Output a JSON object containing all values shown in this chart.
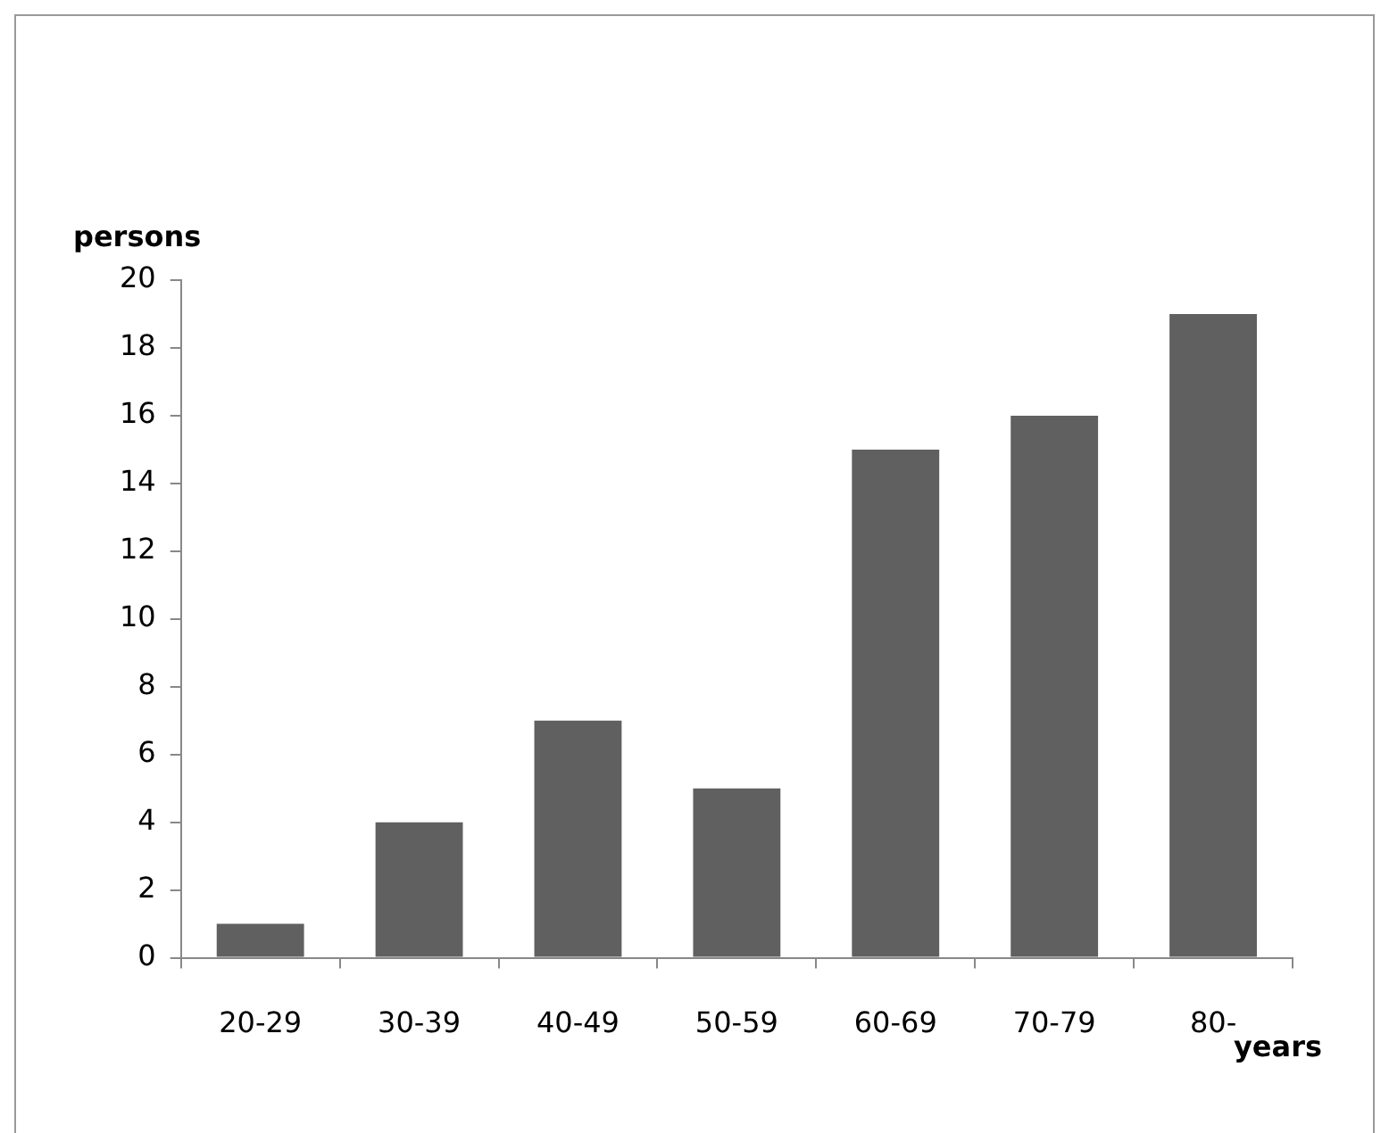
{
  "chart_data": {
    "type": "bar",
    "xlabel": "years",
    "ylabel": "persons",
    "categories": [
      "20-29",
      "30-39",
      "40-49",
      "50-59",
      "60-69",
      "70-79",
      "80-"
    ],
    "values": [
      1,
      4,
      7,
      5,
      15,
      16,
      19
    ],
    "color": "#606060",
    "ylim": [
      0,
      20
    ],
    "yticks": [
      0,
      2,
      4,
      6,
      8,
      10,
      12,
      14,
      16,
      18,
      20
    ],
    "grid": false,
    "legend": false
  }
}
